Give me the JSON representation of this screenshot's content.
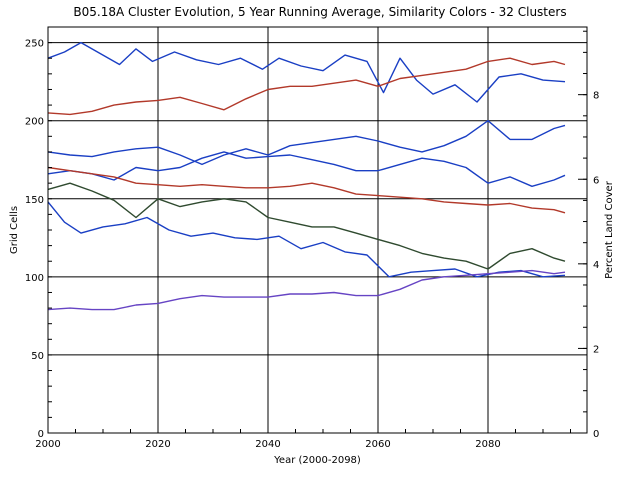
{
  "chart_data": {
    "type": "line",
    "title": "B05.18A Cluster Evolution, 5 Year Running Average, Similarity Colors - 32 Clusters",
    "xlabel": "Year (2000-2098)",
    "ylabel": "Grid Cells",
    "y2label": "Percent Land Cover",
    "xlim": [
      2000,
      2098
    ],
    "ylim": [
      0,
      260
    ],
    "y2lim": [
      0,
      9.6
    ],
    "x_ticks": [
      2000,
      2020,
      2040,
      2060,
      2080
    ],
    "y_ticks": [
      0,
      50,
      100,
      150,
      200,
      250
    ],
    "y2_ticks": [
      0,
      2,
      4,
      6,
      8
    ],
    "grid": true,
    "series": [
      {
        "color": "#1a3fc4",
        "x": [
          2000,
          2003,
          2006,
          2010,
          2013,
          2016,
          2019,
          2023,
          2027,
          2031,
          2035,
          2039,
          2042,
          2046,
          2050,
          2054,
          2058,
          2061,
          2064,
          2067,
          2070,
          2074,
          2078,
          2082,
          2086,
          2090,
          2094
        ],
        "y": [
          240,
          244,
          250,
          242,
          236,
          246,
          238,
          244,
          239,
          236,
          240,
          233,
          240,
          235,
          232,
          242,
          238,
          218,
          240,
          226,
          217,
          223,
          212,
          228,
          230,
          226,
          225
        ]
      },
      {
        "color": "#b2392a",
        "x": [
          2000,
          2004,
          2008,
          2012,
          2016,
          2020,
          2024,
          2028,
          2032,
          2036,
          2040,
          2044,
          2048,
          2052,
          2056,
          2060,
          2064,
          2068,
          2072,
          2076,
          2080,
          2084,
          2088,
          2092,
          2094
        ],
        "y": [
          205,
          204,
          206,
          210,
          212,
          213,
          215,
          211,
          207,
          214,
          220,
          222,
          222,
          224,
          226,
          222,
          227,
          229,
          231,
          233,
          238,
          240,
          236,
          238,
          236
        ]
      },
      {
        "color": "#1a3fc4",
        "x": [
          2000,
          2004,
          2008,
          2012,
          2016,
          2020,
          2024,
          2028,
          2032,
          2036,
          2040,
          2044,
          2048,
          2052,
          2056,
          2060,
          2064,
          2068,
          2072,
          2076,
          2080,
          2084,
          2088,
          2092,
          2094
        ],
        "y": [
          180,
          178,
          177,
          180,
          182,
          183,
          178,
          172,
          178,
          182,
          178,
          184,
          186,
          188,
          190,
          187,
          183,
          180,
          184,
          190,
          200,
          188,
          188,
          195,
          197
        ]
      },
      {
        "color": "#1a3fc4",
        "x": [
          2000,
          2004,
          2008,
          2012,
          2016,
          2020,
          2024,
          2028,
          2032,
          2036,
          2040,
          2044,
          2048,
          2052,
          2056,
          2060,
          2064,
          2068,
          2072,
          2076,
          2080,
          2084,
          2088,
          2092,
          2094
        ],
        "y": [
          166,
          168,
          166,
          162,
          170,
          168,
          170,
          176,
          180,
          176,
          177,
          178,
          175,
          172,
          168,
          168,
          172,
          176,
          174,
          170,
          160,
          164,
          158,
          162,
          165
        ]
      },
      {
        "color": "#b2392a",
        "x": [
          2000,
          2004,
          2008,
          2012,
          2016,
          2020,
          2024,
          2028,
          2032,
          2036,
          2040,
          2044,
          2048,
          2052,
          2056,
          2060,
          2064,
          2068,
          2072,
          2076,
          2080,
          2084,
          2088,
          2092,
          2094
        ],
        "y": [
          170,
          168,
          166,
          164,
          160,
          159,
          158,
          159,
          158,
          157,
          157,
          158,
          160,
          157,
          153,
          152,
          151,
          150,
          148,
          147,
          146,
          147,
          144,
          143,
          141
        ]
      },
      {
        "color": "#2f4a2f",
        "x": [
          2000,
          2004,
          2008,
          2012,
          2016,
          2020,
          2024,
          2028,
          2032,
          2036,
          2040,
          2044,
          2048,
          2052,
          2056,
          2060,
          2064,
          2068,
          2072,
          2076,
          2080,
          2084,
          2088,
          2092,
          2094
        ],
        "y": [
          156,
          160,
          155,
          149,
          138,
          150,
          145,
          148,
          150,
          148,
          138,
          135,
          132,
          132,
          128,
          124,
          120,
          115,
          112,
          110,
          105,
          115,
          118,
          112,
          110
        ]
      },
      {
        "color": "#1a3fc4",
        "x": [
          2000,
          2003,
          2006,
          2010,
          2014,
          2018,
          2022,
          2026,
          2030,
          2034,
          2038,
          2042,
          2046,
          2050,
          2054,
          2058,
          2062,
          2066,
          2070,
          2074,
          2078,
          2082,
          2086,
          2090,
          2094
        ],
        "y": [
          148,
          135,
          128,
          132,
          134,
          138,
          130,
          126,
          128,
          125,
          124,
          126,
          118,
          122,
          116,
          114,
          100,
          103,
          104,
          105,
          100,
          103,
          104,
          100,
          101
        ]
      },
      {
        "color": "#6644c4",
        "x": [
          2000,
          2004,
          2008,
          2012,
          2016,
          2020,
          2024,
          2028,
          2032,
          2036,
          2040,
          2044,
          2048,
          2052,
          2056,
          2060,
          2064,
          2068,
          2072,
          2076,
          2080,
          2084,
          2088,
          2092,
          2094
        ],
        "y": [
          79,
          80,
          79,
          79,
          82,
          83,
          86,
          88,
          87,
          87,
          87,
          89,
          89,
          90,
          88,
          88,
          92,
          98,
          100,
          101,
          102,
          103,
          104,
          102,
          103
        ]
      }
    ]
  }
}
